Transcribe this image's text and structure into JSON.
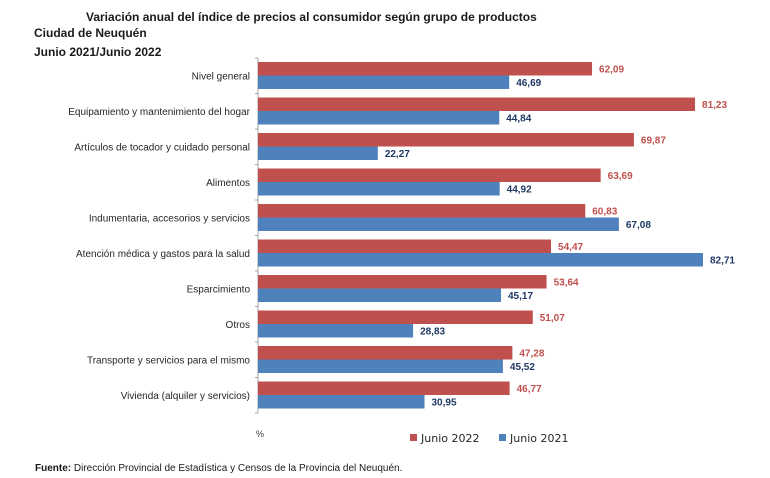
{
  "header": {
    "title": "Variación anual del índice de precios al consumidor según grupo de productos",
    "city": "Ciudad de Neuquén",
    "period": "Junio 2021/Junio 2022"
  },
  "chart_data": {
    "type": "bar",
    "orientation": "horizontal",
    "title": "Variación anual del índice de precios al consumidor según grupo de productos",
    "xlabel": "%",
    "ylabel": "",
    "xlim": [
      0,
      90
    ],
    "grid": false,
    "legend_position": "bottom",
    "categories": [
      "Nivel general",
      "Equipamiento y mantenimiento del hogar",
      "Artículos de tocador y cuidado personal",
      "Alimentos",
      "Indumentaria, accesorios y servicios",
      "Atención médica y gastos para la salud",
      "Esparcimiento",
      "Otros",
      "Transporte y servicios para el mismo",
      "Vivienda (alquiler y servicios)"
    ],
    "series": [
      {
        "name": "Junio 2022",
        "color": "#c0504d",
        "label_color": "#c0504d",
        "values": [
          62.09,
          81.23,
          69.87,
          63.69,
          60.83,
          54.47,
          53.64,
          51.07,
          47.28,
          46.77
        ],
        "labels": [
          "62,09",
          "81,23",
          "69,87",
          "63,69",
          "60,83",
          "54,47",
          "53,64",
          "51,07",
          "47,28",
          "46,77"
        ]
      },
      {
        "name": "Junio 2021",
        "color": "#4f81bd",
        "label_color": "#1f3864",
        "values": [
          46.69,
          44.84,
          22.27,
          44.92,
          67.08,
          82.71,
          45.17,
          28.83,
          45.52,
          30.95
        ],
        "labels": [
          "46,69",
          "44,84",
          "22,27",
          "44,92",
          "67,08",
          "82,71",
          "45,17",
          "28,83",
          "45,52",
          "30,95"
        ]
      }
    ]
  },
  "footer": {
    "source_label": "Fuente:",
    "source_text": " Dirección Provincial de Estadística y Censos de la Provincia del Neuquén."
  }
}
